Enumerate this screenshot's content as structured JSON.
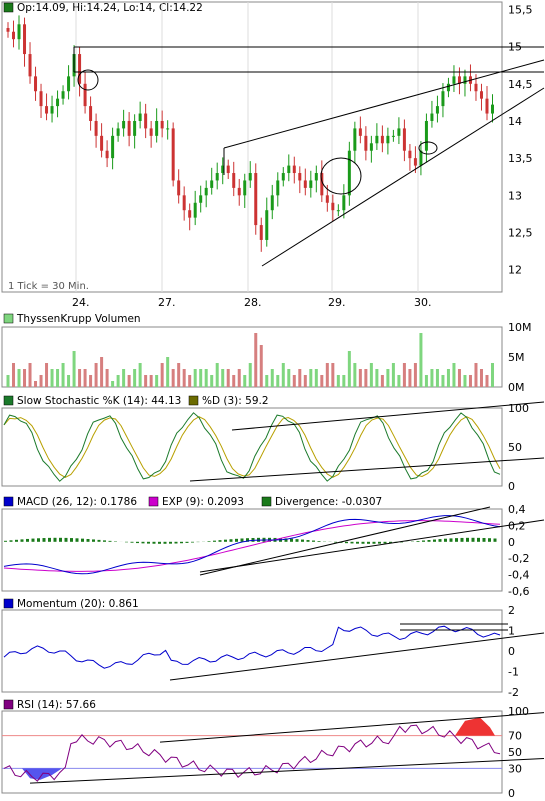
{
  "price_panel": {
    "legend": "Op:14.09, Hi:14.24, Lo:14, Cl:14.22",
    "legend_color": "#1a7a1a",
    "note": "1 Tick = 30 Min.",
    "y_ticks": [
      "15,5",
      "15",
      "14,5",
      "14",
      "13,5",
      "13",
      "12,5",
      "12"
    ],
    "x_ticks": [
      "24.",
      "27.",
      "28.",
      "29.",
      "30."
    ]
  },
  "volume_panel": {
    "legend": "ThyssenKrupp Volumen",
    "legend_color": "#7fd67f",
    "y_ticks": [
      "10M",
      "5M",
      "0M"
    ]
  },
  "stoch_panel": {
    "legend_k": "Slow Stochastic %K (14): 44.13",
    "legend_k_color": "#1b7a2b",
    "legend_d": "%D (3): 59.2",
    "legend_d_color": "#6b6b00",
    "y_ticks": [
      "100",
      "50",
      "0"
    ]
  },
  "macd_panel": {
    "legend_macd": "MACD (26, 12): 0.1786",
    "legend_macd_color": "#0000cc",
    "legend_exp": "EXP (9): 0.2093",
    "legend_exp_color": "#cc00cc",
    "legend_div": "Divergence: -0.0307",
    "legend_div_color": "#1a7a1a",
    "y_ticks": [
      "0,4",
      "0,2",
      "0",
      "-0,2",
      "-0,4",
      "-0,6"
    ]
  },
  "momentum_panel": {
    "legend": "Momentum (20): 0.861",
    "legend_color": "#0000cc",
    "y_ticks": [
      "2",
      "1",
      "0",
      "-1",
      "-2"
    ]
  },
  "rsi_panel": {
    "legend": "RSI (14): 57.66",
    "legend_color": "#800080",
    "y_ticks": [
      "100",
      "70",
      "50",
      "30",
      "0"
    ]
  },
  "chart_data": [
    {
      "type": "candlestick",
      "title": "Op:14.09, Hi:14.24, Lo:14, Cl:14.22",
      "ylim": [
        11.7,
        15.6
      ],
      "x_ticks": [
        "24.",
        "27.",
        "28.",
        "29.",
        "30."
      ],
      "close_approx": [
        15.2,
        15.1,
        15.3,
        14.9,
        14.6,
        14.4,
        14.2,
        14.1,
        14.2,
        14.3,
        14.4,
        14.6,
        14.9,
        14.5,
        14.2,
        14.0,
        13.8,
        13.6,
        13.5,
        13.8,
        13.9,
        14.0,
        13.8,
        14.0,
        14.1,
        13.9,
        13.8,
        14.0,
        13.9,
        13.9,
        13.2,
        13.0,
        12.8,
        12.7,
        12.9,
        13.0,
        13.1,
        13.2,
        13.3,
        13.4,
        13.3,
        13.1,
        13.0,
        13.2,
        13.3,
        12.6,
        12.4,
        12.8,
        13.0,
        13.2,
        13.3,
        13.4,
        13.3,
        13.2,
        13.1,
        13.2,
        13.3,
        13.0,
        12.9,
        12.8,
        12.8,
        13.0,
        13.6,
        13.9,
        13.8,
        13.6,
        13.7,
        13.8,
        13.7,
        13.8,
        13.8,
        13.9,
        13.6,
        13.5,
        13.4,
        13.6,
        14.0,
        14.1,
        14.2,
        14.4,
        14.5,
        14.6,
        14.5,
        14.6,
        14.5,
        14.4,
        14.3,
        14.1,
        14.22
      ]
    },
    {
      "type": "bar",
      "title": "ThyssenKrupp Volumen",
      "ylim": [
        0,
        10
      ],
      "values_millions": [
        2,
        4,
        3,
        3,
        4,
        1,
        2,
        4,
        3,
        3,
        4,
        2,
        6,
        3,
        3,
        2,
        4,
        5,
        3,
        1,
        2,
        3,
        2,
        3,
        4,
        2,
        2,
        2,
        4,
        5,
        3,
        4,
        3,
        2,
        3,
        3,
        3,
        2,
        4,
        3,
        3,
        2,
        3,
        2,
        4,
        9,
        7,
        2,
        3,
        2,
        4,
        3,
        2,
        3,
        2,
        3,
        3,
        2,
        4,
        4,
        2,
        2,
        6,
        4,
        3,
        3,
        4,
        3,
        2,
        3,
        4,
        2,
        4,
        3,
        4,
        9,
        2,
        3,
        3,
        2,
        3,
        4,
        3,
        2,
        2,
        4,
        3,
        2,
        4
      ]
    },
    {
      "type": "line",
      "title": "Slow Stochastic %K (14)",
      "ylim": [
        0,
        100
      ],
      "series": [
        {
          "name": "Slow Stochastic %K (14): 44.13"
        },
        {
          "name": "%D (3): 59.2"
        }
      ]
    },
    {
      "type": "line",
      "title": "MACD (26, 12)",
      "ylim": [
        -0.6,
        0.4
      ],
      "series": [
        {
          "name": "MACD (26, 12): 0.1786"
        },
        {
          "name": "EXP (9): 0.2093"
        },
        {
          "name": "Divergence: -0.0307"
        }
      ]
    },
    {
      "type": "line",
      "title": "Momentum (20)",
      "ylim": [
        -2,
        2
      ],
      "series": [
        {
          "name": "Momentum (20): 0.861"
        }
      ]
    },
    {
      "type": "line",
      "title": "RSI (14)",
      "ylim": [
        0,
        100
      ],
      "series": [
        {
          "name": "RSI (14): 57.66"
        }
      ]
    }
  ]
}
